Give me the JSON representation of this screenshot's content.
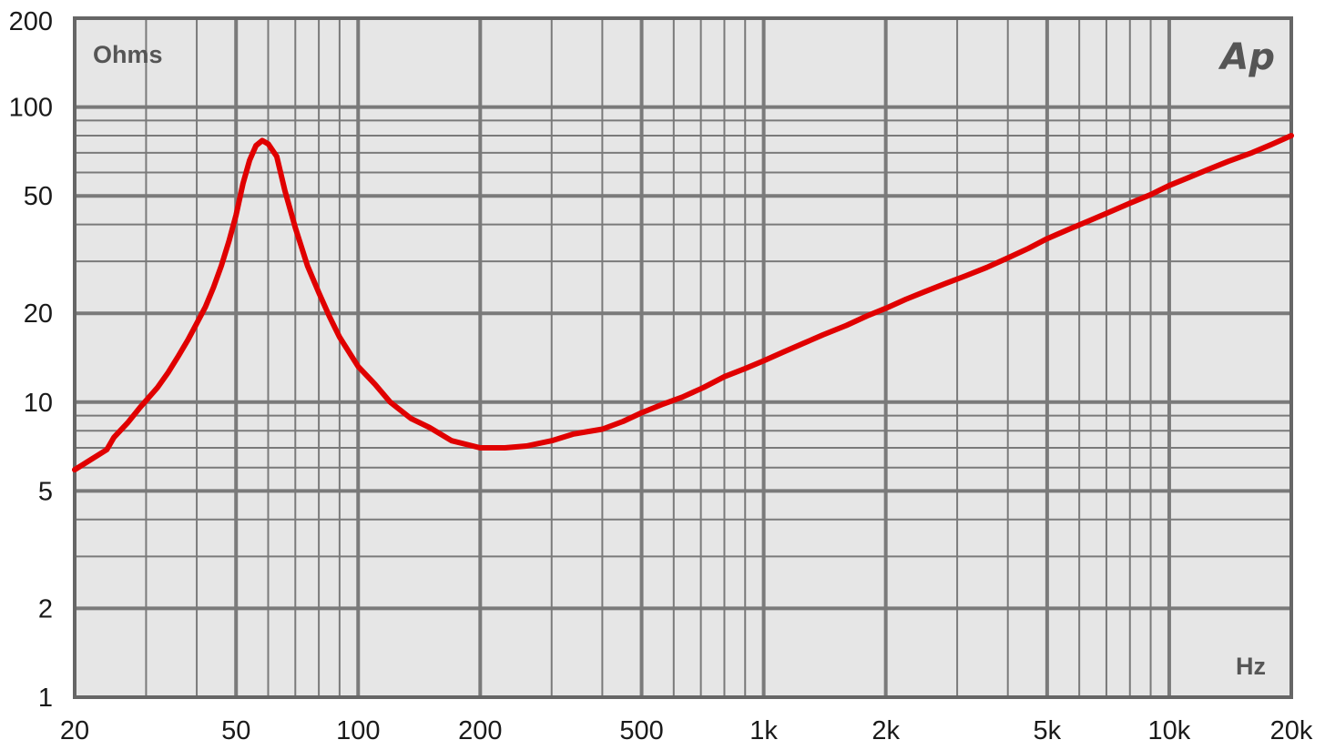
{
  "colors": {
    "background": "#e6e6e6",
    "grid": "#7a7a7a",
    "frame": "#666666",
    "curve": "#e00000",
    "text": "#1a1a1a"
  },
  "logo": {
    "text": "Ap"
  },
  "chart_data": {
    "type": "line",
    "x_scale": "log",
    "y_scale": "log",
    "xlabel": "Hz",
    "ylabel": "Ohms",
    "xlim": [
      20,
      20000
    ],
    "ylim": [
      1,
      200
    ],
    "grid": true,
    "x_ticks": [
      {
        "value": 20,
        "label": "20"
      },
      {
        "value": 50,
        "label": "50"
      },
      {
        "value": 100,
        "label": "100"
      },
      {
        "value": 200,
        "label": "200"
      },
      {
        "value": 500,
        "label": "500"
      },
      {
        "value": 1000,
        "label": "1k"
      },
      {
        "value": 2000,
        "label": "2k"
      },
      {
        "value": 5000,
        "label": "5k"
      },
      {
        "value": 10000,
        "label": "10k"
      },
      {
        "value": 20000,
        "label": "20k"
      }
    ],
    "y_ticks": [
      {
        "value": 1,
        "label": "1"
      },
      {
        "value": 2,
        "label": "2"
      },
      {
        "value": 5,
        "label": "5"
      },
      {
        "value": 10,
        "label": "10"
      },
      {
        "value": 20,
        "label": "20"
      },
      {
        "value": 50,
        "label": "50"
      },
      {
        "value": 100,
        "label": "100"
      },
      {
        "value": 200,
        "label": "200"
      }
    ],
    "series": [
      {
        "color": "#e00000",
        "x": [
          20,
          22,
          24,
          25,
          27,
          29,
          32,
          34,
          36,
          38,
          40,
          42,
          44,
          46,
          48,
          50,
          52,
          54,
          56,
          58,
          60,
          63,
          66,
          70,
          75,
          80,
          85,
          90,
          100,
          110,
          120,
          135,
          150,
          170,
          200,
          230,
          260,
          300,
          340,
          400,
          450,
          500,
          560,
          630,
          710,
          800,
          900,
          1000,
          1120,
          1250,
          1400,
          1600,
          1800,
          2000,
          2240,
          2500,
          2800,
          3150,
          3550,
          4000,
          4500,
          5000,
          5600,
          6300,
          7100,
          8000,
          9000,
          10000,
          11200,
          12500,
          14000,
          16000,
          18000,
          20000
        ],
        "y": [
          5.9,
          6.4,
          6.9,
          7.6,
          8.5,
          9.6,
          11.2,
          12.6,
          14.3,
          16.2,
          18.5,
          21,
          24.5,
          29,
          35,
          43,
          55,
          66,
          74,
          77,
          75,
          68,
          52,
          39,
          29,
          23.5,
          19.5,
          16.6,
          13.2,
          11.5,
          10,
          8.8,
          8.2,
          7.4,
          7,
          7,
          7.1,
          7.4,
          7.8,
          8.1,
          8.6,
          9.2,
          9.8,
          10.4,
          11.2,
          12.2,
          13,
          13.8,
          14.8,
          15.8,
          16.9,
          18.2,
          19.6,
          20.8,
          22.3,
          23.7,
          25.2,
          26.8,
          28.6,
          30.8,
          33.2,
          35.8,
          38.3,
          41,
          44,
          47.2,
          50.5,
          54.2,
          57.8,
          61.5,
          65.5,
          70,
          75,
          80
        ]
      }
    ]
  }
}
